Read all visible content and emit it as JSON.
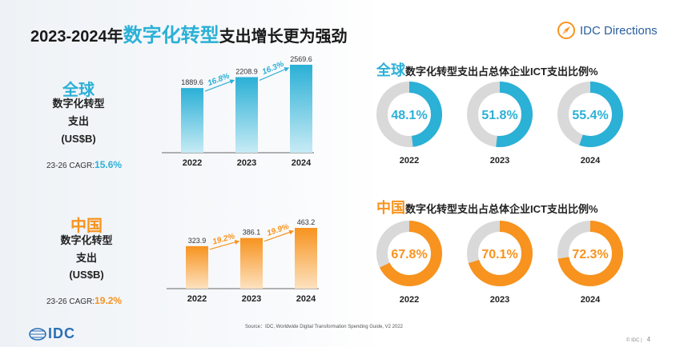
{
  "title": {
    "prefix": "2023-2024年",
    "highlight": "数字化转型",
    "suffix": "支出增长更为强劲"
  },
  "logo": {
    "text": "IDC Directions"
  },
  "global": {
    "region": "全球",
    "metric_line1": "数字化转型",
    "metric_line2": "支出",
    "metric_line3": "(US$B)",
    "cagr_label": "23-26 CAGR:",
    "cagr_value": "15.6%",
    "donut_title_region": "全球",
    "donut_title_rest": "数字化转型支出占总体企业ICT支出比例%"
  },
  "china": {
    "region": "中国",
    "metric_line1": "数字化转型",
    "metric_line2": "支出",
    "metric_line3": "(US$B)",
    "cagr_label": "23-26 CAGR:",
    "cagr_value": "19.2%",
    "donut_title_region": "中国",
    "donut_title_rest": "数字化转型支出占总体企业ICT支出比例%"
  },
  "colors": {
    "global": "#2bb0d6",
    "china": "#f7931e",
    "donut_bg": "#d9d9d9"
  },
  "chart_data": [
    {
      "type": "bar",
      "region": "全球",
      "categories": [
        "2022",
        "2023",
        "2024"
      ],
      "values": [
        1889.6,
        2208.9,
        2569.6
      ],
      "growth_labels": [
        "16.8%",
        "16.3%"
      ],
      "ylim": [
        0,
        2569.6
      ]
    },
    {
      "type": "bar",
      "region": "中国",
      "categories": [
        "2022",
        "2023",
        "2024"
      ],
      "values": [
        323.9,
        386.1,
        463.2
      ],
      "growth_labels": [
        "19.2%",
        "19.9%"
      ],
      "ylim": [
        0,
        463.2
      ]
    },
    {
      "type": "pie",
      "region": "全球",
      "categories": [
        "2022",
        "2023",
        "2024"
      ],
      "values": [
        48.1,
        51.8,
        55.4
      ],
      "labels": [
        "48.1%",
        "51.8%",
        "55.4%"
      ]
    },
    {
      "type": "pie",
      "region": "中国",
      "categories": [
        "2022",
        "2023",
        "2024"
      ],
      "values": [
        67.8,
        70.1,
        72.3
      ],
      "labels": [
        "67.8%",
        "70.1%",
        "72.3%"
      ]
    }
  ],
  "footer": {
    "source": "Source：IDC, Worldwide Digital Transformation Spending Guide, V2 2022",
    "copyright": "© IDC |",
    "page_number": "4",
    "idc_logo": "IDC"
  }
}
